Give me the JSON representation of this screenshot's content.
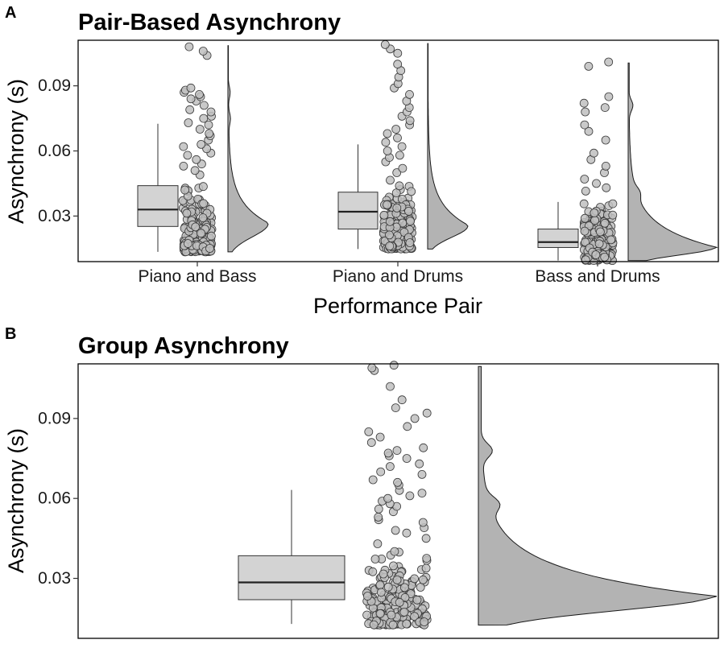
{
  "panels": [
    {
      "letter": "A",
      "title": "Pair-Based Asynchrony",
      "xlabel": "Performance Pair",
      "ylabel": "Asynchrony (s)",
      "yticks": [
        0.03,
        0.06,
        0.09
      ],
      "yticklabels": [
        "0.03",
        "0.06",
        "0.09"
      ]
    },
    {
      "letter": "B",
      "title": "Group Asynchrony",
      "xlabel": "",
      "ylabel": "Asynchrony (s)",
      "yticks": [
        0.03,
        0.06,
        0.09
      ],
      "yticklabels": [
        "0.03",
        "0.06",
        "0.09"
      ]
    }
  ],
  "chart_data": [
    {
      "type": "raincloud",
      "title": "Pair-Based Asynchrony",
      "xlabel": "Performance Pair",
      "ylabel": "Asynchrony (s)",
      "ylim": [
        0.009,
        0.111
      ],
      "grid": false,
      "legend": "none",
      "categories": [
        "Piano and Bass",
        "Piano and Drums",
        "Bass and Drums"
      ],
      "box_color": "#d3d3d3",
      "point_color": "#c0c0c0",
      "density_color": "#b3b3b3",
      "groups": [
        {
          "category": "Piano and Bass",
          "box": {
            "whisker_low": 0.0135,
            "q1": 0.0252,
            "median": 0.033,
            "q3": 0.044,
            "whisker_high": 0.0725
          },
          "density_range": [
            0.0135,
            0.1085
          ],
          "density_peak": 0.0265,
          "density_tail_bumps": [
            0.075,
            0.087
          ],
          "points": {
            "n": 220,
            "main_range": [
              0.0135,
              0.048
            ],
            "outliers": [
              0.049,
              0.051,
              0.053,
              0.054,
              0.056,
              0.058,
              0.059,
              0.061,
              0.062,
              0.063,
              0.065,
              0.067,
              0.068,
              0.07,
              0.072,
              0.073,
              0.075,
              0.076,
              0.078,
              0.079,
              0.081,
              0.083,
              0.084,
              0.085,
              0.086,
              0.087,
              0.088,
              0.089,
              0.104,
              0.106,
              0.108
            ]
          }
        },
        {
          "category": "Piano and Drums",
          "box": {
            "whisker_low": 0.0148,
            "q1": 0.024,
            "median": 0.032,
            "q3": 0.041,
            "whisker_high": 0.063
          },
          "density_range": [
            0.0148,
            0.1095
          ],
          "density_peak": 0.0255,
          "density_tail_bumps": [],
          "points": {
            "n": 220,
            "main_range": [
              0.0148,
              0.048
            ],
            "outliers": [
              0.05,
              0.052,
              0.055,
              0.057,
              0.058,
              0.06,
              0.062,
              0.064,
              0.066,
              0.068,
              0.07,
              0.072,
              0.074,
              0.076,
              0.078,
              0.08,
              0.083,
              0.086,
              0.089,
              0.091,
              0.094,
              0.097,
              0.1,
              0.105,
              0.107,
              0.109
            ]
          }
        },
        {
          "category": "Bass and Drums",
          "box": {
            "whisker_low": 0.0095,
            "q1": 0.0155,
            "median": 0.018,
            "q3": 0.024,
            "whisker_high": 0.0365
          },
          "density_range": [
            0.0095,
            0.1005
          ],
          "density_peak": 0.0155,
          "density_tail_bumps": [
            0.041,
            0.081
          ],
          "points": {
            "n": 220,
            "main_range": [
              0.0095,
              0.041
            ],
            "outliers": [
              0.0415,
              0.043,
              0.045,
              0.047,
              0.05,
              0.053,
              0.056,
              0.059,
              0.065,
              0.069,
              0.072,
              0.078,
              0.08,
              0.082,
              0.085,
              0.099,
              0.101
            ]
          }
        }
      ]
    },
    {
      "type": "raincloud",
      "title": "Group Asynchrony",
      "xlabel": "",
      "ylabel": "Asynchrony (s)",
      "ylim": [
        0.0075,
        0.1105
      ],
      "grid": false,
      "legend": "none",
      "categories": [],
      "box_color": "#d3d3d3",
      "point_color": "#c0c0c0",
      "density_color": "#b3b3b3",
      "groups": [
        {
          "category": "",
          "box": {
            "whisker_low": 0.0129,
            "q1": 0.022,
            "median": 0.0285,
            "q3": 0.0385,
            "whisker_high": 0.0632
          },
          "density_range": [
            0.0125,
            0.1095
          ],
          "density_peak": 0.0232,
          "density_tail_bumps": [
            0.078,
            0.058
          ],
          "points": {
            "n": 230,
            "main_range": [
              0.0125,
              0.042
            ],
            "outliers": [
              0.043,
              0.045,
              0.047,
              0.048,
              0.049,
              0.051,
              0.052,
              0.053,
              0.055,
              0.056,
              0.057,
              0.058,
              0.059,
              0.06,
              0.061,
              0.062,
              0.063,
              0.065,
              0.066,
              0.067,
              0.069,
              0.07,
              0.072,
              0.073,
              0.075,
              0.076,
              0.077,
              0.078,
              0.079,
              0.081,
              0.083,
              0.085,
              0.087,
              0.09,
              0.092,
              0.094,
              0.097,
              0.102,
              0.108,
              0.109,
              0.11
            ]
          }
        }
      ]
    }
  ]
}
